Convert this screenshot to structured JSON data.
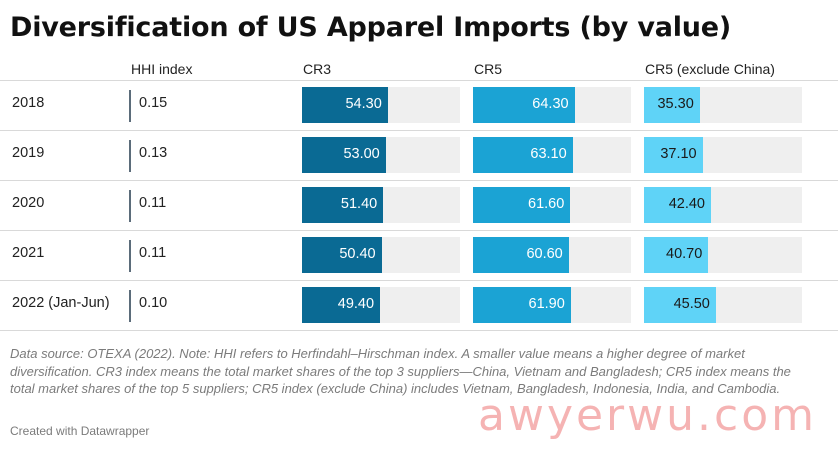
{
  "header": {
    "title": "Diversification of US Apparel Imports (by value)"
  },
  "footer": {
    "note": "Data source: OTEXA (2022). Note: HHI refers to Herfindahl–Hirschman index. A smaller value means a higher degree of market diversification. CR3 index means the total market shares of the top 3 suppliers—China, Vietnam and Bangladesh; CR5 index means the total market shares of the top 5 suppliers; CR5 index (exclude China) includes Vietnam, Bangladesh, Indonesia, India, and Cambodia.",
    "credit": "Created with Datawrapper",
    "watermark": "awyerwu.com"
  },
  "colors": {
    "cr3": "#0a6a94",
    "cr5": "#1ba3d4",
    "cr5_ex_china": "#5fd3f7",
    "track": "#efefef",
    "hhi_line": "#5b6c7a"
  },
  "chart_data": {
    "type": "table",
    "title": "Diversification of US Apparel Imports (by value)",
    "columns": [
      "HHI index",
      "CR3",
      "CR5",
      "CR5 (exclude China)"
    ],
    "bar_scale_max": 100,
    "rows": [
      {
        "label": "2018",
        "hhi": "0.15",
        "cr3": 54.3,
        "cr5": 64.3,
        "cr5_ex_china": 35.3
      },
      {
        "label": "2019",
        "hhi": "0.13",
        "cr3": 53.0,
        "cr5": 63.1,
        "cr5_ex_china": 37.1
      },
      {
        "label": "2020",
        "hhi": "0.11",
        "cr3": 51.4,
        "cr5": 61.6,
        "cr5_ex_china": 42.4
      },
      {
        "label": "2021",
        "hhi": "0.11",
        "cr3": 50.4,
        "cr5": 60.6,
        "cr5_ex_china": 40.7
      },
      {
        "label": "2022 (Jan-Jun)",
        "hhi": "0.10",
        "cr3": 49.4,
        "cr5": 61.9,
        "cr5_ex_china": 45.5
      }
    ]
  }
}
